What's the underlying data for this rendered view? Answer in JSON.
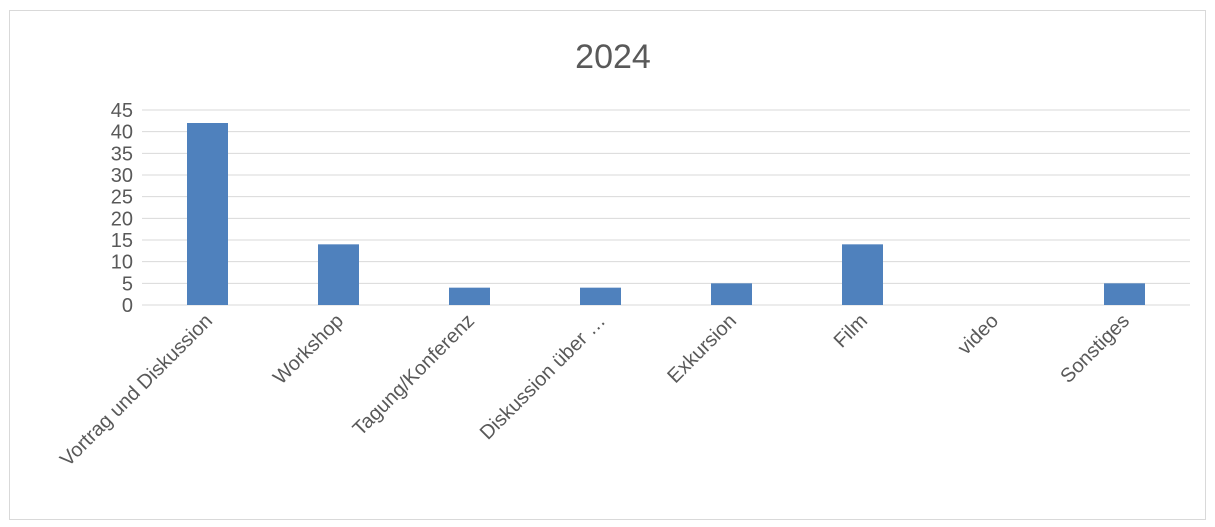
{
  "chart_data": {
    "type": "bar",
    "title": "2024",
    "xlabel": "",
    "ylabel": "",
    "categories": [
      "Vortrag und Diskussion",
      "Workshop",
      "Tagung/Konferenz",
      "Diskussion über …",
      "Exkursion",
      "Film",
      "video",
      "Sonstiges"
    ],
    "values": [
      42,
      14,
      4,
      4,
      5,
      14,
      0,
      5
    ],
    "ylim": [
      0,
      45
    ],
    "yticks": [
      0,
      5,
      10,
      15,
      20,
      25,
      30,
      35,
      40,
      45
    ],
    "grid": true,
    "legend": "none",
    "bar_color": "#4f81bd",
    "grid_color": "#d9d9d9",
    "text_color": "#595959"
  }
}
